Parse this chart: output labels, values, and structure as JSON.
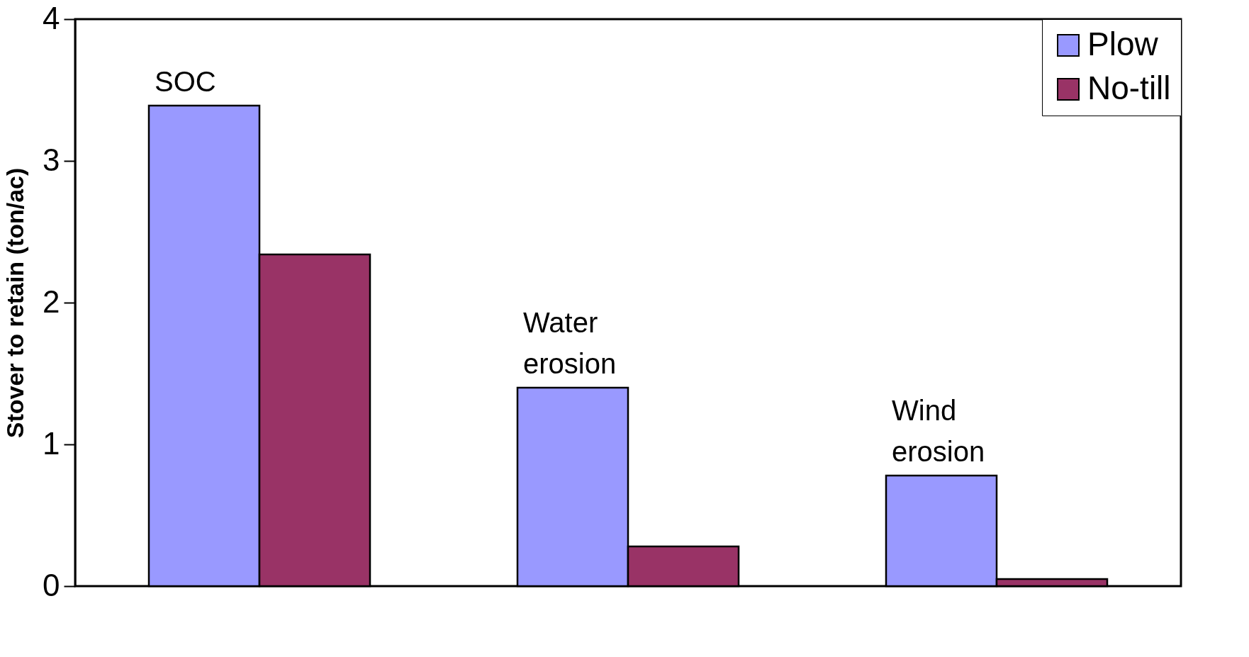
{
  "chart_data": {
    "type": "bar",
    "ylabel": "Stover to retain (ton/ac)",
    "categories": [
      "SOC",
      "Water erosion",
      "Wind erosion"
    ],
    "series": [
      {
        "name": "Plow",
        "color": "#9999ff",
        "values": [
          3.39,
          1.4,
          0.78
        ]
      },
      {
        "name": "No-till",
        "color": "#993366",
        "values": [
          2.34,
          0.28,
          0.05
        ]
      }
    ],
    "ylim": [
      0,
      4
    ],
    "yticks": [
      0,
      1,
      2,
      3,
      4
    ],
    "grid": false,
    "legend": "top right",
    "tick_labels": "y"
  }
}
